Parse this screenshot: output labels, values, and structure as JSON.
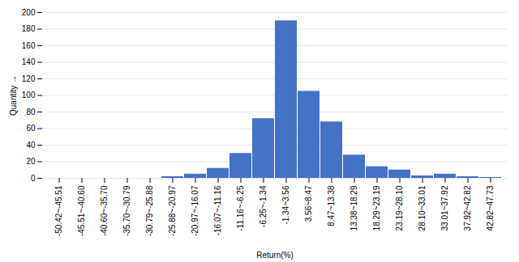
{
  "chart_data": {
    "type": "bar",
    "categories": [
      "-50.42~-45.51",
      "-45.51~-40.60",
      "-40.60~-35.70",
      "-35.70~-30.79",
      "-30.79~-25.88",
      "-25.88~-20.97",
      "-20.97~-16.07",
      "-16.07~-11.16",
      "-11.16~-6.25",
      "-6.25~-1.34",
      "-1.34~3.56",
      "3.56~8.47",
      "8.47~13.38",
      "13.38~18.29",
      "18.29~23.19",
      "23.19~28.10",
      "28.10~33.01",
      "33.01~37.92",
      "37.92~42.82",
      "42.82~47.73"
    ],
    "values": [
      0,
      0,
      0,
      0,
      0,
      2,
      5,
      12,
      30,
      72,
      190,
      105,
      68,
      28,
      14,
      10,
      3,
      5,
      2,
      1
    ],
    "color": "#4472C4",
    "xlabel": "Return(%)",
    "ylabel": "Quantity",
    "ylim": [
      0,
      200
    ],
    "yticks": [
      0,
      20,
      40,
      60,
      80,
      100,
      120,
      140,
      160,
      180,
      200
    ],
    "grid": true
  }
}
